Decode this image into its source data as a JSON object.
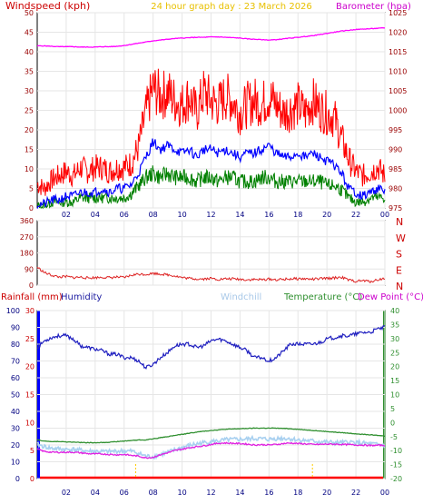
{
  "colors": {
    "wind_speed": "#ff0000",
    "wind_gust": "#ff0000",
    "wind_avg": "#0000ff",
    "wind_low": "#008000",
    "barometer": "#ff00ff",
    "direction": "#dd2222",
    "humidity": "#2020c0",
    "windchill": "#a8d0f0",
    "temperature": "#2f8f2f",
    "dew_point": "#e020e0",
    "rain_axis": "#0000ff",
    "rain_marks": "#ffcc00",
    "frame": "#000000",
    "axis_text": "#800000",
    "time_text": "#000080"
  },
  "chart_data": [
    {
      "type": "line",
      "id": "wind-baro",
      "title": "24 hour graph day : 23 March 2026",
      "left_axis_label": "Windspeed (kph)",
      "right_axis_label": "Barometer (hpa)",
      "left_ticks": [
        "0",
        "5",
        "10",
        "15",
        "20",
        "25",
        "30",
        "35",
        "40",
        "45",
        "50"
      ],
      "right_ticks": [
        "975",
        "980",
        "985",
        "990",
        "995",
        "1000",
        "1005",
        "1010",
        "1015",
        "1020",
        "1025"
      ],
      "x_ticks": [
        "02",
        "04",
        "06",
        "08",
        "10",
        "12",
        "14",
        "16",
        "18",
        "20",
        "22",
        "00"
      ],
      "ylim_left": [
        0,
        50
      ],
      "ylim_right": [
        975,
        1025
      ],
      "x_hours": [
        0,
        0.5,
        1,
        1.5,
        2,
        2.5,
        3,
        3.5,
        4,
        4.5,
        5,
        5.5,
        6,
        6.5,
        7,
        7.5,
        8,
        8.5,
        9,
        9.5,
        10,
        10.5,
        11,
        11.5,
        12,
        12.5,
        13,
        13.5,
        14,
        14.5,
        15,
        15.5,
        16,
        16.5,
        17,
        17.5,
        18,
        18.5,
        19,
        19.5,
        20,
        20.5,
        21,
        21.5,
        22,
        22.5,
        23,
        23.5,
        24
      ],
      "series": [
        {
          "key": "gust",
          "values": [
            5,
            4,
            6,
            7,
            8,
            7,
            9,
            8,
            9,
            9,
            8,
            9,
            9,
            10,
            14,
            22,
            28,
            26,
            27,
            25,
            24,
            26,
            22,
            27,
            25,
            24,
            26,
            25,
            22,
            24,
            25,
            24,
            26,
            24,
            22,
            23,
            24,
            22,
            25,
            23,
            22,
            21,
            16,
            11,
            8,
            7,
            8,
            9,
            7
          ]
        },
        {
          "key": "average",
          "values": [
            1,
            1,
            2,
            2,
            3,
            3,
            4,
            4,
            4,
            5,
            4,
            5,
            5,
            6,
            9,
            13,
            17,
            15,
            16,
            15,
            14,
            15,
            13,
            15,
            15,
            14,
            15,
            14,
            13,
            14,
            14,
            15,
            16,
            14,
            13,
            13,
            14,
            13,
            14,
            13,
            12,
            11,
            9,
            5,
            4,
            3,
            4,
            5,
            4
          ]
        },
        {
          "key": "low",
          "values": [
            0,
            0,
            1,
            1,
            1,
            1,
            2,
            2,
            2,
            2,
            2,
            2,
            2,
            3,
            5,
            7,
            8,
            7,
            8,
            7,
            7,
            7,
            6,
            7,
            7,
            6,
            7,
            7,
            6,
            6,
            6,
            7,
            7,
            6,
            6,
            6,
            6,
            6,
            6,
            6,
            5,
            5,
            4,
            2,
            1,
            1,
            2,
            2,
            2
          ]
        },
        {
          "key": "barometer",
          "values": [
            1016.5,
            1016.5,
            1016.4,
            1016.3,
            1016.3,
            1016.3,
            1016.2,
            1016.2,
            1016.2,
            1016.3,
            1016.3,
            1016.4,
            1016.6,
            1016.9,
            1017.2,
            1017.5,
            1017.8,
            1018.0,
            1018.2,
            1018.4,
            1018.5,
            1018.6,
            1018.7,
            1018.7,
            1018.8,
            1018.8,
            1018.7,
            1018.6,
            1018.5,
            1018.3,
            1018.2,
            1018.1,
            1018.0,
            1018.1,
            1018.3,
            1018.5,
            1018.7,
            1018.9,
            1019.1,
            1019.4,
            1019.7,
            1020.0,
            1020.3,
            1020.5,
            1020.7,
            1020.8,
            1020.9,
            1021.0,
            1021.1
          ]
        }
      ]
    },
    {
      "type": "line",
      "id": "wind-direction",
      "left_ticks": [
        "0",
        "90",
        "180",
        "270",
        "360"
      ],
      "right_ticks": [
        "N",
        "E",
        "S",
        "W",
        "N"
      ],
      "ylim": [
        0,
        360
      ],
      "x_hours": [
        0,
        0.5,
        1,
        1.5,
        2,
        2.5,
        3,
        3.5,
        4,
        4.5,
        5,
        5.5,
        6,
        6.5,
        7,
        7.5,
        8,
        8.5,
        9,
        9.5,
        10,
        10.5,
        11,
        11.5,
        12,
        12.5,
        13,
        13.5,
        14,
        14.5,
        15,
        15.5,
        16,
        16.5,
        17,
        17.5,
        18,
        18.5,
        19,
        19.5,
        20,
        20.5,
        21,
        21.5,
        22,
        22.5,
        23,
        23.5,
        24
      ],
      "series": [
        {
          "key": "direction",
          "values": [
            100,
            70,
            55,
            45,
            48,
            42,
            45,
            40,
            42,
            44,
            42,
            45,
            42,
            55,
            62,
            60,
            66,
            62,
            58,
            52,
            42,
            38,
            35,
            35,
            38,
            32,
            35,
            35,
            33,
            30,
            32,
            30,
            34,
            30,
            32,
            35,
            36,
            35,
            33,
            35,
            38,
            40,
            45,
            28,
            22,
            25,
            20,
            30,
            38
          ]
        }
      ]
    },
    {
      "type": "line",
      "id": "temp-hum-rain",
      "labels": {
        "rainfall": "Rainfall (mm)",
        "humidity": "Humidity",
        "windchill": "Windchill",
        "temperature": "Temperature (°C)",
        "dew_point": "Dew Point (°C)"
      },
      "humidity_ticks": [
        "0",
        "10",
        "20",
        "30",
        "40",
        "50",
        "60",
        "70",
        "80",
        "90",
        "100"
      ],
      "rain_ticks": [
        "0",
        "5",
        "10",
        "15",
        "20",
        "25",
        "30"
      ],
      "temp_ticks": [
        "-20",
        "-15",
        "-10",
        "-5",
        "0",
        "5",
        "10",
        "15",
        "20",
        "25",
        "30",
        "35",
        "40"
      ],
      "x_ticks": [
        "02",
        "04",
        "06",
        "08",
        "10",
        "12",
        "14",
        "16",
        "18",
        "20",
        "22",
        "00"
      ],
      "ylim_humidity": [
        0,
        100
      ],
      "ylim_temp": [
        -20,
        40
      ],
      "rain_events_hours": [
        6.8,
        19.0
      ],
      "rain_total_values": [
        0,
        0
      ],
      "x_hours": [
        0,
        0.5,
        1,
        1.5,
        2,
        2.5,
        3,
        3.5,
        4,
        4.5,
        5,
        5.5,
        6,
        6.5,
        7,
        7.5,
        8,
        8.5,
        9,
        9.5,
        10,
        10.5,
        11,
        11.5,
        12,
        12.5,
        13,
        13.5,
        14,
        14.5,
        15,
        15.5,
        16,
        16.5,
        17,
        17.5,
        18,
        18.5,
        19,
        19.5,
        20,
        20.5,
        21,
        21.5,
        22,
        22.5,
        23,
        23.5,
        24
      ],
      "series": [
        {
          "key": "humidity",
          "values": [
            78,
            82,
            84,
            85,
            85,
            83,
            79,
            78,
            77,
            76,
            74,
            74,
            72,
            72,
            70,
            66,
            68,
            72,
            75,
            79,
            80,
            80,
            78,
            79,
            82,
            83,
            82,
            80,
            78,
            76,
            72,
            72,
            70,
            72,
            76,
            80,
            80,
            80,
            80,
            81,
            83,
            84,
            85,
            85,
            86,
            87,
            87,
            89,
            90
          ]
        },
        {
          "key": "temperature",
          "values": [
            -6.2,
            -6.6,
            -6.8,
            -6.8,
            -6.9,
            -7.0,
            -7.1,
            -7.2,
            -7.2,
            -7.1,
            -7.0,
            -6.8,
            -6.6,
            -6.4,
            -6.2,
            -6.2,
            -5.8,
            -5.4,
            -5.0,
            -4.6,
            -4.2,
            -3.8,
            -3.4,
            -3.1,
            -2.8,
            -2.6,
            -2.4,
            -2.3,
            -2.2,
            -2.1,
            -2.0,
            -2.0,
            -2.0,
            -2.0,
            -2.1,
            -2.2,
            -2.4,
            -2.6,
            -2.8,
            -3.0,
            -3.2,
            -3.4,
            -3.6,
            -3.8,
            -4.0,
            -4.2,
            -4.4,
            -4.6,
            -4.8
          ]
        },
        {
          "key": "dew_point",
          "values": [
            -9.5,
            -10.3,
            -10.6,
            -10.6,
            -10.6,
            -10.6,
            -10.8,
            -11.1,
            -11.2,
            -11.2,
            -11.4,
            -11.5,
            -11.4,
            -11.7,
            -12.0,
            -12.6,
            -12.4,
            -11.5,
            -10.8,
            -10.0,
            -9.5,
            -9.0,
            -8.6,
            -8.3,
            -7.8,
            -7.4,
            -7.3,
            -7.4,
            -7.5,
            -7.7,
            -8.0,
            -7.9,
            -8.0,
            -7.8,
            -7.5,
            -7.3,
            -7.5,
            -7.6,
            -7.8,
            -7.8,
            -7.7,
            -7.7,
            -7.8,
            -7.9,
            -8.0,
            -8.0,
            -8.2,
            -8.1,
            -8.1
          ]
        },
        {
          "key": "windchill",
          "values": [
            -7.8,
            -8.6,
            -9.2,
            -9.4,
            -9.6,
            -9.6,
            -9.9,
            -10.2,
            -10.2,
            -10.4,
            -10.4,
            -10.2,
            -10.2,
            -10.2,
            -11.0,
            -12.0,
            -12.2,
            -11.4,
            -10.7,
            -9.8,
            -8.9,
            -8.2,
            -7.6,
            -7.2,
            -6.8,
            -6.6,
            -6.2,
            -6.1,
            -6.0,
            -5.9,
            -5.7,
            -5.8,
            -6.0,
            -5.7,
            -5.6,
            -5.8,
            -6.2,
            -6.4,
            -6.6,
            -6.8,
            -7.0,
            -7.2,
            -7.2,
            -7.0,
            -7.1,
            -7.4,
            -7.6,
            -7.9,
            -8.1
          ]
        }
      ]
    }
  ]
}
